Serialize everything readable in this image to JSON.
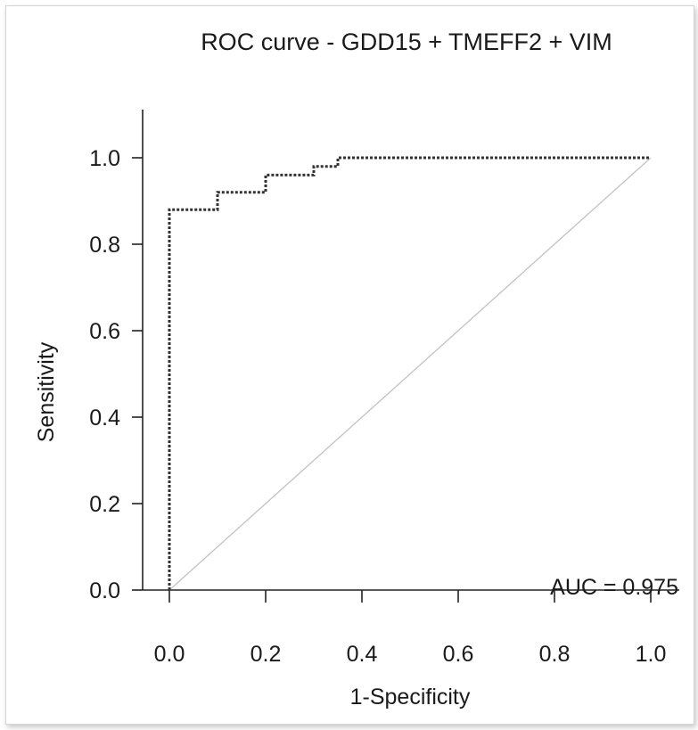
{
  "chart_data": {
    "type": "line",
    "title": "ROC curve - GDD15 + TMEFF2 + VIM",
    "xlabel": "1-Specificity",
    "ylabel": "Sensitivity",
    "xlim": [
      0,
      1
    ],
    "ylim": [
      0,
      1
    ],
    "x_ticks": [
      "0.0",
      "0.2",
      "0.4",
      "0.6",
      "0.8",
      "1.0"
    ],
    "y_ticks": [
      "0.0",
      "0.2",
      "0.4",
      "0.6",
      "0.8",
      "1.0"
    ],
    "series": [
      {
        "line_style": "dotted step",
        "color": "#333333",
        "x": [
          0.0,
          0.0,
          0.1,
          0.1,
          0.2,
          0.2,
          0.3,
          0.3,
          0.35,
          0.35,
          1.0
        ],
        "y": [
          0.0,
          0.88,
          0.88,
          0.92,
          0.92,
          0.96,
          0.96,
          0.98,
          0.98,
          1.0,
          1.0
        ]
      }
    ],
    "reference_line": {
      "x": [
        0,
        1
      ],
      "y": [
        0,
        1
      ],
      "color": "#c2c2c2"
    },
    "annotation": "AUC = 0.975",
    "grid": false,
    "legend": "none"
  }
}
